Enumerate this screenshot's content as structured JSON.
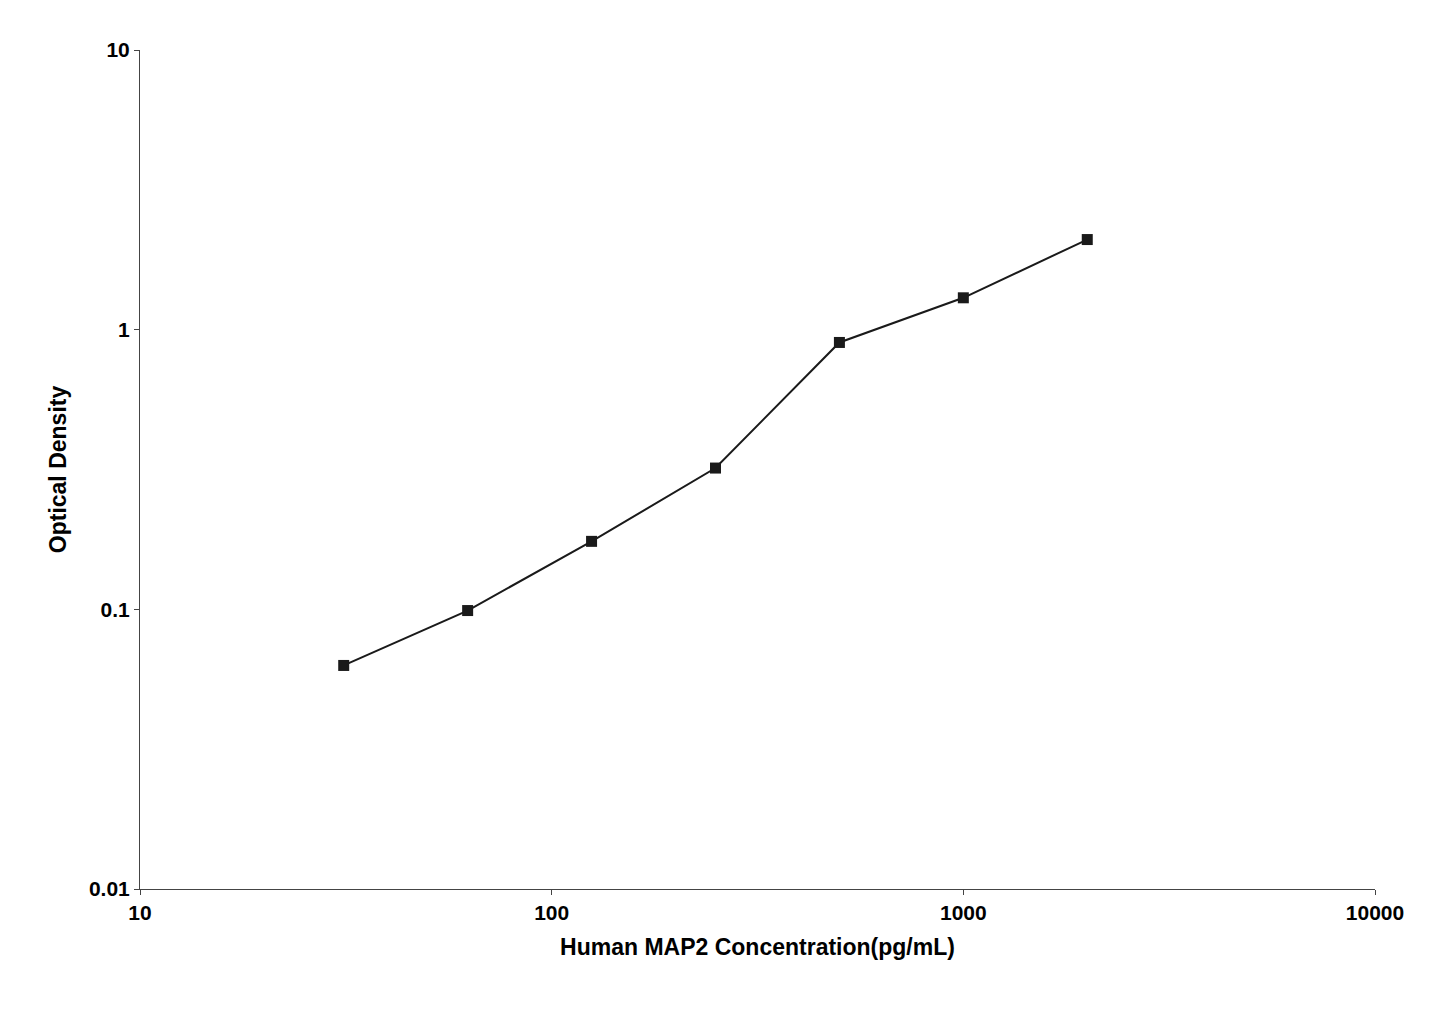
{
  "chart_data": {
    "type": "line",
    "x": [
      31.25,
      62.5,
      125,
      250,
      500,
      1000,
      2000
    ],
    "values": [
      0.063,
      0.099,
      0.175,
      0.32,
      0.9,
      1.3,
      2.1
    ],
    "xlabel": "Human MAP2 Concentration(pg/mL)",
    "ylabel": "Optical Density",
    "color": "#1a1a1a",
    "marker": "square",
    "line_style": "solid",
    "log": true,
    "xlim": [
      10,
      10000
    ],
    "ylim": [
      0.01,
      10
    ],
    "xticks": [
      10,
      100,
      1000,
      10000
    ],
    "yticks": [
      0.01,
      0.1,
      1,
      10
    ],
    "grid": false
  }
}
